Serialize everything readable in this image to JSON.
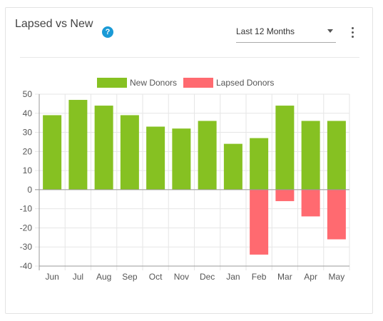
{
  "header": {
    "title": "Lapsed vs New",
    "help_label": "?",
    "range_select": {
      "value": "Last 12 Months"
    }
  },
  "colors": {
    "accent": "#1a9ad6",
    "new_donors": "#86c122",
    "lapsed_donors": "#ff6a70",
    "grid": "#e6e6e6",
    "axis": "#999999"
  },
  "chart_data": {
    "type": "bar",
    "categories": [
      "Jun",
      "Jul",
      "Aug",
      "Sep",
      "Oct",
      "Nov",
      "Dec",
      "Jan",
      "Feb",
      "Mar",
      "Apr",
      "May"
    ],
    "series": [
      {
        "name": "New Donors",
        "values": [
          39,
          47,
          44,
          39,
          33,
          32,
          36,
          24,
          27,
          44,
          36,
          36
        ]
      },
      {
        "name": "Lapsed Donors",
        "values": [
          0,
          0,
          0,
          0,
          0,
          0,
          0,
          0,
          -34,
          -6,
          -14,
          -26
        ]
      }
    ],
    "stacked": true,
    "ylim": [
      -40,
      50
    ],
    "yticks": [
      50,
      40,
      30,
      20,
      10,
      0,
      -10,
      -20,
      -30,
      -40
    ],
    "grid": true,
    "legend": "top-center"
  }
}
